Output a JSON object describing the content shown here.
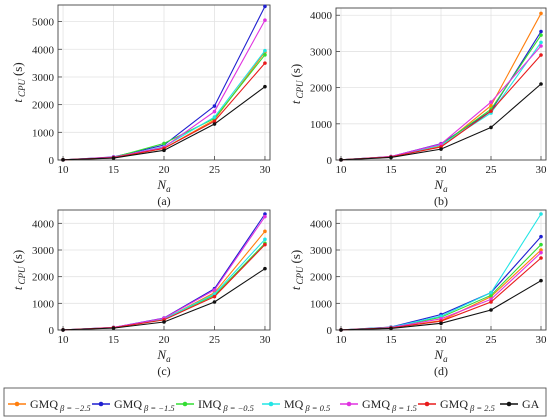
{
  "colors": {
    "GMQ_-2.5": "#ff7f0e",
    "GMQ_-1.5": "#1f1fd0",
    "IMQ_-0.5": "#33dd33",
    "MQ_0.5": "#22e5e5",
    "GMQ_1.5": "#e033e0",
    "GMQ_2.5": "#e81c1c",
    "GA": "#111111"
  },
  "legend": {
    "items": [
      {
        "name": "GMQ",
        "sub": "β = −2.5",
        "key": "GMQ_-2.5"
      },
      {
        "name": "GMQ",
        "sub": "β = −1.5",
        "key": "GMQ_-1.5"
      },
      {
        "name": "IMQ",
        "sub": "β = −0.5",
        "key": "IMQ_-0.5"
      },
      {
        "name": "MQ",
        "sub": "β = 0.5",
        "key": "MQ_0.5"
      },
      {
        "name": "GMQ",
        "sub": "β = 1.5",
        "key": "GMQ_1.5"
      },
      {
        "name": "GMQ",
        "sub": "β = 2.5",
        "key": "GMQ_2.5"
      },
      {
        "name": "GA",
        "sub": "",
        "key": "GA"
      }
    ]
  },
  "chart_data": [
    {
      "type": "line",
      "panel_label": "(a)",
      "xlabel_main": "N",
      "xlabel_sub": "a",
      "ylabel_main": "t",
      "ylabel_sub": "CPU",
      "ylabel_unit": "(s)",
      "x": [
        10,
        15,
        20,
        25,
        30
      ],
      "xticks": [
        "10",
        "15",
        "20",
        "25",
        "30"
      ],
      "yticks": [
        0,
        1000,
        2000,
        3000,
        4000,
        5000
      ],
      "ylim": [
        0,
        5600
      ],
      "xlim": [
        9.5,
        30.5
      ],
      "series": [
        {
          "key": "GMQ_-2.5",
          "values": [
            5,
            80,
            420,
            1450,
            3900
          ]
        },
        {
          "key": "GMQ_-1.5",
          "values": [
            5,
            110,
            540,
            1950,
            5550
          ]
        },
        {
          "key": "IMQ_-0.5",
          "values": [
            5,
            95,
            600,
            1500,
            3800
          ]
        },
        {
          "key": "MQ_0.5",
          "values": [
            5,
            90,
            480,
            1550,
            3950
          ]
        },
        {
          "key": "GMQ_1.5",
          "values": [
            5,
            100,
            460,
            1750,
            5050
          ]
        },
        {
          "key": "GMQ_2.5",
          "values": [
            5,
            85,
            420,
            1400,
            3500
          ]
        },
        {
          "key": "GA",
          "values": [
            5,
            70,
            350,
            1300,
            2650
          ]
        }
      ]
    },
    {
      "type": "line",
      "panel_label": "(b)",
      "xlabel_main": "N",
      "xlabel_sub": "a",
      "ylabel_main": "t",
      "ylabel_sub": "CPU",
      "ylabel_unit": "(s)",
      "x": [
        10,
        15,
        20,
        25,
        30
      ],
      "xticks": [
        "10",
        "15",
        "20",
        "25",
        "30"
      ],
      "yticks": [
        0,
        1000,
        2000,
        3000,
        4000
      ],
      "ylim": [
        0,
        4200
      ],
      "xlim": [
        9.5,
        30.5
      ],
      "series": [
        {
          "key": "GMQ_-2.5",
          "values": [
            5,
            90,
            380,
            1500,
            4050
          ]
        },
        {
          "key": "GMQ_-1.5",
          "values": [
            5,
            95,
            450,
            1350,
            3550
          ]
        },
        {
          "key": "IMQ_-0.5",
          "values": [
            5,
            90,
            420,
            1400,
            3450
          ]
        },
        {
          "key": "MQ_0.5",
          "values": [
            5,
            90,
            410,
            1300,
            3250
          ]
        },
        {
          "key": "GMQ_1.5",
          "values": [
            5,
            95,
            440,
            1600,
            3150
          ]
        },
        {
          "key": "GMQ_2.5",
          "values": [
            5,
            85,
            360,
            1350,
            2900
          ]
        },
        {
          "key": "GA",
          "values": [
            5,
            70,
            300,
            900,
            2100
          ]
        }
      ]
    },
    {
      "type": "line",
      "panel_label": "(c)",
      "xlabel_main": "N",
      "xlabel_sub": "a",
      "ylabel_main": "t",
      "ylabel_sub": "CPU",
      "ylabel_unit": "(s)",
      "x": [
        10,
        15,
        20,
        25,
        30
      ],
      "xticks": [
        "10",
        "15",
        "20",
        "25",
        "30"
      ],
      "yticks": [
        0,
        1000,
        2000,
        3000,
        4000
      ],
      "ylim": [
        0,
        4500
      ],
      "xlim": [
        9.5,
        30.5
      ],
      "series": [
        {
          "key": "GMQ_-2.5",
          "values": [
            5,
            85,
            400,
            1400,
            3700
          ]
        },
        {
          "key": "GMQ_-1.5",
          "values": [
            5,
            95,
            450,
            1550,
            4350
          ]
        },
        {
          "key": "IMQ_-0.5",
          "values": [
            5,
            90,
            420,
            1300,
            3250
          ]
        },
        {
          "key": "MQ_0.5",
          "values": [
            5,
            90,
            410,
            1350,
            3400
          ]
        },
        {
          "key": "GMQ_1.5",
          "values": [
            5,
            95,
            440,
            1500,
            4250
          ]
        },
        {
          "key": "GMQ_2.5",
          "values": [
            5,
            85,
            380,
            1250,
            3200
          ]
        },
        {
          "key": "GA",
          "values": [
            5,
            70,
            300,
            1050,
            2300
          ]
        }
      ]
    },
    {
      "type": "line",
      "panel_label": "(d)",
      "xlabel_main": "N",
      "xlabel_sub": "a",
      "ylabel_main": "t",
      "ylabel_sub": "CPU",
      "ylabel_unit": "(s)",
      "x": [
        10,
        15,
        20,
        25,
        30
      ],
      "xticks": [
        "10",
        "15",
        "20",
        "25",
        "30"
      ],
      "yticks": [
        0,
        1000,
        2000,
        3000,
        4000
      ],
      "ylim": [
        0,
        4500
      ],
      "xlim": [
        9.5,
        30.5
      ],
      "series": [
        {
          "key": "GMQ_-2.5",
          "values": [
            5,
            85,
            350,
            1250,
            3000
          ]
        },
        {
          "key": "GMQ_-1.5",
          "values": [
            5,
            110,
            580,
            1400,
            3500
          ]
        },
        {
          "key": "IMQ_-0.5",
          "values": [
            5,
            95,
            480,
            1300,
            3200
          ]
        },
        {
          "key": "MQ_0.5",
          "values": [
            5,
            100,
            520,
            1400,
            4350
          ]
        },
        {
          "key": "GMQ_1.5",
          "values": [
            5,
            90,
            420,
            1150,
            2900
          ]
        },
        {
          "key": "GMQ_2.5",
          "values": [
            5,
            80,
            330,
            1050,
            2700
          ]
        },
        {
          "key": "GA",
          "values": [
            5,
            60,
            250,
            750,
            1850
          ]
        }
      ]
    }
  ]
}
